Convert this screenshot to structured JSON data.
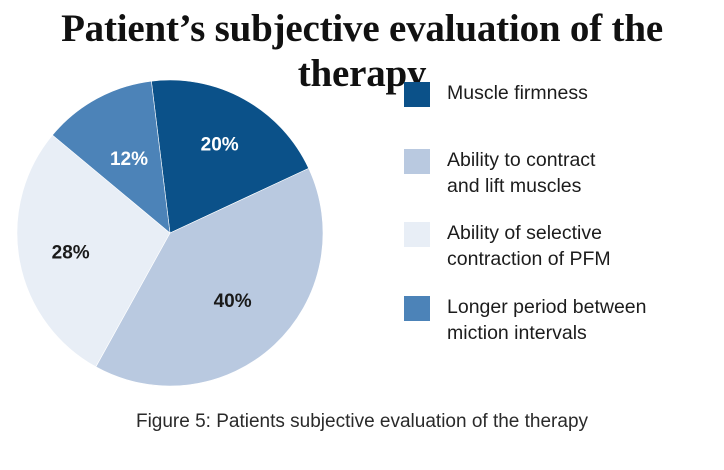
{
  "title": "Patient’s subjective evaluation of the therapy",
  "caption": "Figure 5: Patients subjective evaluation of the therapy",
  "chart_data": {
    "type": "pie",
    "title": "Patient’s subjective evaluation of the therapy",
    "legend_position": "right",
    "slices": [
      {
        "label": "Muscle firmness",
        "value": 20,
        "value_label": "20%",
        "color": "#0b5189"
      },
      {
        "label": "Ability to contract\nand lift muscles",
        "value": 40,
        "value_label": "40%",
        "color": "#b9c9e0"
      },
      {
        "label": "Ability of selective\ncontraction of PFM",
        "value": 28,
        "value_label": "28%",
        "color": "#e8eef6"
      },
      {
        "label": "Longer period between\nmiction intervals",
        "value": 12,
        "value_label": "12%",
        "color": "#4c83b8"
      }
    ]
  }
}
